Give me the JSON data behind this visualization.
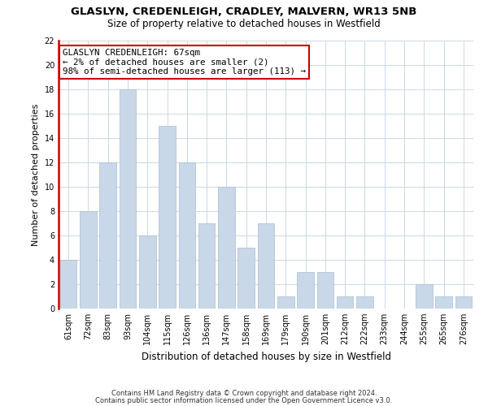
{
  "title": "GLASLYN, CREDENLEIGH, CRADLEY, MALVERN, WR13 5NB",
  "subtitle": "Size of property relative to detached houses in Westfield",
  "xlabel": "Distribution of detached houses by size in Westfield",
  "ylabel": "Number of detached properties",
  "bar_labels": [
    "61sqm",
    "72sqm",
    "83sqm",
    "93sqm",
    "104sqm",
    "115sqm",
    "126sqm",
    "136sqm",
    "147sqm",
    "158sqm",
    "169sqm",
    "179sqm",
    "190sqm",
    "201sqm",
    "212sqm",
    "222sqm",
    "233sqm",
    "244sqm",
    "255sqm",
    "265sqm",
    "276sqm"
  ],
  "bar_values": [
    4,
    8,
    12,
    18,
    6,
    15,
    12,
    7,
    10,
    5,
    7,
    1,
    3,
    3,
    1,
    1,
    0,
    0,
    2,
    1,
    1
  ],
  "bar_color": "#c8d8e8",
  "bar_edge_color": "#aabcce",
  "annotation_title": "GLASLYN CREDENLEIGH: 67sqm",
  "annotation_line1": "← 2% of detached houses are smaller (2)",
  "annotation_line2": "98% of semi-detached houses are larger (113) →",
  "annotation_box_facecolor": "#ffffff",
  "annotation_box_edgecolor": "#cc0000",
  "red_line_color": "#cc0000",
  "ylim": [
    0,
    22
  ],
  "yticks": [
    0,
    2,
    4,
    6,
    8,
    10,
    12,
    14,
    16,
    18,
    20,
    22
  ],
  "footer1": "Contains HM Land Registry data © Crown copyright and database right 2024.",
  "footer2": "Contains public sector information licensed under the Open Government Licence v3.0.",
  "background_color": "#ffffff",
  "grid_color": "#ccd8e4",
  "title_fontsize": 9.5,
  "subtitle_fontsize": 8.5,
  "ylabel_fontsize": 8,
  "xlabel_fontsize": 8.5,
  "tick_fontsize": 7,
  "footer_fontsize": 6,
  "annotation_fontsize": 7.8
}
